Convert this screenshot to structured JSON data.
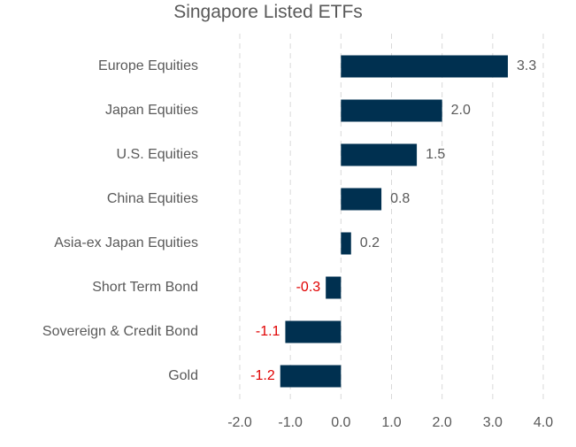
{
  "chart_data": {
    "type": "bar",
    "orientation": "horizontal",
    "title": "Singapore Listed ETFs",
    "categories": [
      "Europe Equities",
      "Japan Equities",
      "U.S. Equities",
      "China Equities",
      "Asia-ex Japan Equities",
      "Short Term Bond",
      "Sovereign & Credit Bond",
      "Gold"
    ],
    "values": [
      3.3,
      2.0,
      1.5,
      0.8,
      0.2,
      -0.3,
      -1.1,
      -1.2
    ],
    "value_labels": [
      "3.3",
      "2.0",
      "1.5",
      "0.8",
      "0.2",
      "-0.3",
      "-1.1",
      "-1.2"
    ],
    "xlim": [
      -2.0,
      4.0
    ],
    "xticks": [
      "-2.0",
      "-1.0",
      "0.0",
      "1.0",
      "2.0",
      "3.0",
      "4.0"
    ],
    "xtick_values": [
      -2.0,
      -1.0,
      0.0,
      1.0,
      2.0,
      3.0,
      4.0
    ],
    "grid": "vertical dashed",
    "legend": "none",
    "colors": {
      "bar": "#003050",
      "positive_label": "#595959",
      "negative_label": "#e00000",
      "grid": "#d9d9d9",
      "text": "#595959"
    }
  }
}
